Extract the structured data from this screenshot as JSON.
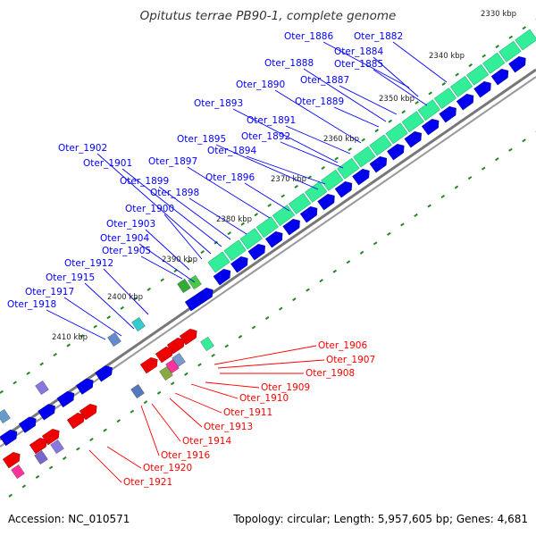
{
  "title": "Opitutus terrae PB90-1, complete genome",
  "footer": {
    "accession": "Accession: NC_010571",
    "summary": "Topology: circular; Length: 5,957,605 bp; Genes: 4,681"
  },
  "colors": {
    "plus_strand_label": "#0000ff",
    "minus_strand_label": "#ff0000",
    "gene_blue": "#0000ee",
    "gene_red": "#ee0000",
    "rna_green": "#33ee99",
    "backbone": "#777777",
    "tick": "#228822"
  },
  "scale_labels": [
    "2330 kbp",
    "2340 kbp",
    "2350 kbp",
    "2360 kbp",
    "2370 kbp",
    "2380 kbp",
    "2390 kbp",
    "2400 kbp",
    "2410 kbp"
  ],
  "plus_genes": [
    "Oter_1886",
    "Oter_1882",
    "Oter_1884",
    "Oter_1888",
    "Oter_1885",
    "Oter_1887",
    "Oter_1890",
    "Oter_1889",
    "Oter_1893",
    "Oter_1891",
    "Oter_1892",
    "Oter_1895",
    "Oter_1894",
    "Oter_1902",
    "Oter_1897",
    "Oter_1901",
    "Oter_1896",
    "Oter_1899",
    "Oter_1898",
    "Oter_1900",
    "Oter_1903",
    "Oter_1904",
    "Oter_1905",
    "Oter_1912",
    "Oter_1915",
    "Oter_1917",
    "Oter_1918"
  ],
  "minus_genes": [
    "Oter_1906",
    "Oter_1907",
    "Oter_1908",
    "Oter_1909",
    "Oter_1910",
    "Oter_1911",
    "Oter_1913",
    "Oter_1914",
    "Oter_1916",
    "Oter_1920",
    "Oter_1921"
  ]
}
